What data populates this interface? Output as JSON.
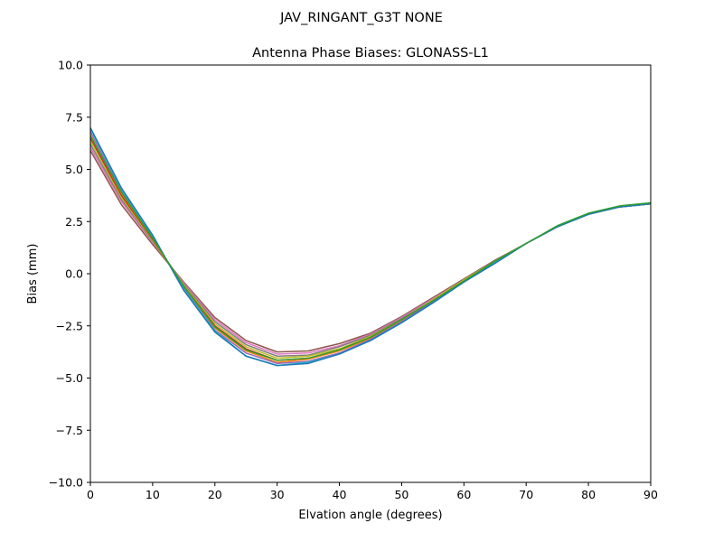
{
  "figure": {
    "suptitle": "JAV_RINGANT_G3T NONE"
  },
  "chart_data": {
    "type": "line",
    "title": "Antenna Phase Biases: GLONASS-L1",
    "xlabel": "Elvation angle (degrees)",
    "ylabel": "Bias (mm)",
    "xlim": [
      0,
      90
    ],
    "ylim": [
      -10,
      10
    ],
    "xticks": [
      0,
      10,
      20,
      30,
      40,
      50,
      60,
      70,
      80,
      90
    ],
    "yticks": [
      10.0,
      7.5,
      5.0,
      2.5,
      0.0,
      -2.5,
      -5.0,
      -7.5,
      -10.0
    ],
    "ytick_labels": [
      "10.0",
      "7.5",
      "5.0",
      "2.5",
      "0.0",
      "−2.5",
      "−5.0",
      "−7.5",
      "−10.0"
    ],
    "grid": false,
    "legend": "none",
    "x": [
      0,
      5,
      10,
      15,
      20,
      25,
      30,
      35,
      40,
      45,
      50,
      55,
      60,
      65,
      70,
      75,
      80,
      85,
      90
    ],
    "series": [
      {
        "color": "#8c564b",
        "values": [
          5.9,
          3.3,
          1.4,
          -0.4,
          -2.1,
          -3.2,
          -3.75,
          -3.7,
          -3.35,
          -2.85,
          -2.05,
          -1.15,
          -0.25,
          0.65,
          1.45,
          2.25,
          2.85,
          3.2,
          3.35
        ]
      },
      {
        "color": "#e377c2",
        "values": [
          6.05,
          3.45,
          1.5,
          -0.45,
          -2.2,
          -3.3,
          -3.85,
          -3.8,
          -3.45,
          -2.9,
          -2.1,
          -1.2,
          -0.3,
          0.6,
          1.45,
          2.25,
          2.85,
          3.2,
          3.35
        ]
      },
      {
        "color": "#7f7f7f",
        "values": [
          6.2,
          3.55,
          1.55,
          -0.5,
          -2.3,
          -3.4,
          -3.95,
          -3.9,
          -3.5,
          -2.95,
          -2.15,
          -1.25,
          -0.3,
          0.6,
          1.45,
          2.25,
          2.85,
          3.2,
          3.35
        ]
      },
      {
        "color": "#bcbd22",
        "values": [
          6.35,
          3.65,
          1.6,
          -0.55,
          -2.4,
          -3.5,
          -4.05,
          -3.95,
          -3.6,
          -3.0,
          -2.2,
          -1.25,
          -0.3,
          0.6,
          1.45,
          2.25,
          2.85,
          3.2,
          3.35
        ]
      },
      {
        "color": "#d62728",
        "values": [
          6.5,
          3.75,
          1.65,
          -0.6,
          -2.5,
          -3.6,
          -4.15,
          -4.05,
          -3.65,
          -3.05,
          -2.2,
          -1.3,
          -0.35,
          0.55,
          1.45,
          2.25,
          2.85,
          3.2,
          3.35
        ]
      },
      {
        "color": "#ff7f0e",
        "values": [
          6.65,
          3.85,
          1.7,
          -0.65,
          -2.6,
          -3.7,
          -4.25,
          -4.1,
          -3.7,
          -3.1,
          -2.25,
          -1.3,
          -0.35,
          0.55,
          1.45,
          2.25,
          2.85,
          3.2,
          3.35
        ]
      },
      {
        "color": "#9467bd",
        "values": [
          6.8,
          3.95,
          1.75,
          -0.7,
          -2.7,
          -3.8,
          -4.3,
          -4.2,
          -3.8,
          -3.15,
          -2.3,
          -1.35,
          -0.35,
          0.55,
          1.45,
          2.25,
          2.85,
          3.2,
          3.35
        ]
      },
      {
        "color": "#17becf",
        "values": [
          6.95,
          4.05,
          1.8,
          -0.75,
          -2.75,
          -3.95,
          -4.4,
          -4.25,
          -3.85,
          -3.2,
          -2.35,
          -1.4,
          -0.4,
          0.55,
          1.45,
          2.25,
          2.85,
          3.2,
          3.35
        ]
      },
      {
        "color": "#1f77b4",
        "values": [
          7.0,
          4.1,
          1.85,
          -0.8,
          -2.8,
          -3.95,
          -4.4,
          -4.3,
          -3.85,
          -3.2,
          -2.35,
          -1.4,
          -0.4,
          0.5,
          1.45,
          2.25,
          2.85,
          3.2,
          3.35
        ]
      },
      {
        "color": "#2ca02c",
        "values": [
          6.6,
          3.9,
          1.7,
          -0.6,
          -2.55,
          -3.65,
          -4.15,
          -4.05,
          -3.65,
          -3.05,
          -2.2,
          -1.3,
          -0.35,
          0.6,
          1.45,
          2.3,
          2.9,
          3.25,
          3.4
        ]
      }
    ]
  }
}
